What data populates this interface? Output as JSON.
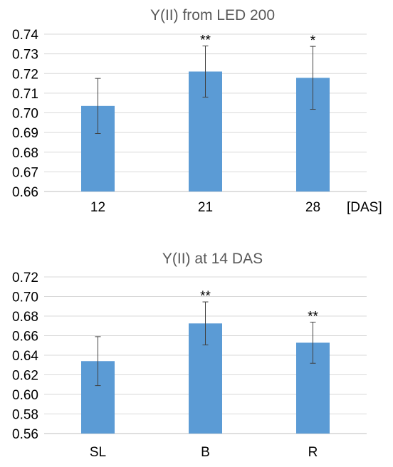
{
  "chart_data": [
    {
      "type": "bar",
      "title": "Y(II) from LED 200",
      "categories": [
        "12",
        "21",
        "28"
      ],
      "values": [
        0.7035,
        0.721,
        0.7178
      ],
      "errors": [
        0.014,
        0.013,
        0.016
      ],
      "significance": [
        "",
        "**",
        "*"
      ],
      "x_unit": "[DAS]",
      "ylim": [
        0.66,
        0.74
      ],
      "yticks": [
        "0.66",
        "0.67",
        "0.68",
        "0.69",
        "0.70",
        "0.71",
        "0.72",
        "0.73",
        "0.74"
      ],
      "grid": true,
      "bar_color": "#5b9bd5"
    },
    {
      "type": "bar",
      "title": "Y(II) at 14 DAS",
      "categories": [
        "SL",
        "B",
        "R"
      ],
      "values": [
        0.634,
        0.6725,
        0.6528
      ],
      "errors": [
        0.025,
        0.022,
        0.021
      ],
      "significance": [
        "",
        "**",
        "**"
      ],
      "x_unit": "",
      "ylim": [
        0.56,
        0.72
      ],
      "yticks": [
        "0.56",
        "0.58",
        "0.60",
        "0.62",
        "0.64",
        "0.66",
        "0.68",
        "0.70",
        "0.72"
      ],
      "grid": true,
      "bar_color": "#5b9bd5"
    }
  ]
}
